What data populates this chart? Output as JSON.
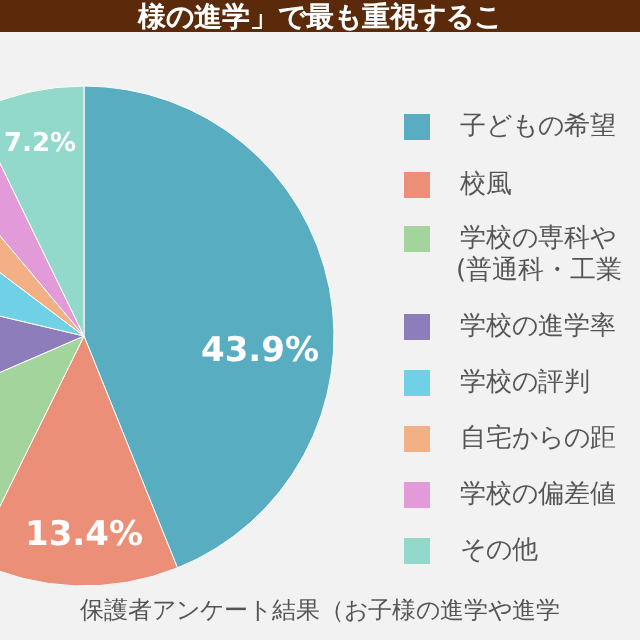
{
  "chart_data": {
    "type": "pie",
    "title": "様の進学」で最も重視するこ",
    "categories": [
      "子どもの希望",
      "校風",
      "学校の専科や\n(普通科・工業",
      "学校の進学率",
      "学校の評判",
      "自宅からの距",
      "学校の偏差値",
      "その他"
    ],
    "values": [
      43.9,
      13.4,
      11.2,
      10.2,
      6.6,
      3.6,
      3.9,
      7.2
    ],
    "colors": [
      "#58aec0",
      "#ec8f79",
      "#a3d49c",
      "#8d7dbb",
      "#6fd0e6",
      "#f3b085",
      "#e29ad8",
      "#92d8cb"
    ],
    "value_labels": [
      "43.9%",
      "13.4%",
      null,
      null,
      null,
      null,
      null,
      "7.2%"
    ],
    "legend": "right",
    "annotations": [
      "保護者アンケート結果（お子様の進学や進学"
    ]
  }
}
